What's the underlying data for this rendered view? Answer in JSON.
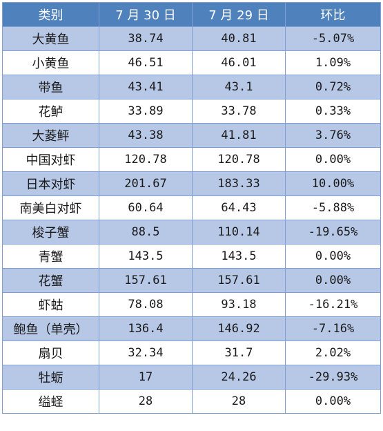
{
  "table": {
    "headers": [
      "类别",
      "7 月 30 日",
      "7 月 29 日",
      "环比"
    ],
    "rows": [
      {
        "category": "大黄鱼",
        "jul30": "38.74",
        "jul29": "40.81",
        "change": "-5.07%"
      },
      {
        "category": "小黄鱼",
        "jul30": "46.51",
        "jul29": "46.01",
        "change": "1.09%"
      },
      {
        "category": "带鱼",
        "jul30": "43.41",
        "jul29": "43.1",
        "change": "0.72%"
      },
      {
        "category": "花鲈",
        "jul30": "33.89",
        "jul29": "33.78",
        "change": "0.33%"
      },
      {
        "category": "大菱鲆",
        "jul30": "43.38",
        "jul29": "41.81",
        "change": "3.76%"
      },
      {
        "category": "中国对虾",
        "jul30": "120.78",
        "jul29": "120.78",
        "change": "0.00%"
      },
      {
        "category": "日本对虾",
        "jul30": "201.67",
        "jul29": "183.33",
        "change": "10.00%"
      },
      {
        "category": "南美白对虾",
        "jul30": "60.64",
        "jul29": "64.43",
        "change": "-5.88%"
      },
      {
        "category": "梭子蟹",
        "jul30": "88.5",
        "jul29": "110.14",
        "change": "-19.65%"
      },
      {
        "category": "青蟹",
        "jul30": "143.5",
        "jul29": "143.5",
        "change": "0.00%"
      },
      {
        "category": "花蟹",
        "jul30": "157.61",
        "jul29": "157.61",
        "change": "0.00%"
      },
      {
        "category": "虾蛄",
        "jul30": "78.08",
        "jul29": "93.18",
        "change": "-16.21%"
      },
      {
        "category": "鲍鱼（单壳）",
        "jul30": "136.4",
        "jul29": "146.92",
        "change": "-7.16%"
      },
      {
        "category": "扇贝",
        "jul30": "32.34",
        "jul29": "31.7",
        "change": "2.02%"
      },
      {
        "category": "牡蛎",
        "jul30": "17",
        "jul29": "24.26",
        "change": "-29.93%"
      },
      {
        "category": "缢蛏",
        "jul30": "28",
        "jul29": "28",
        "change": "0.00%"
      }
    ]
  },
  "colors": {
    "header_bg": "#4f81bd",
    "header_text": "#ffffff",
    "band_bg": "#b7c7e6",
    "plain_bg": "#ffffff",
    "border": "#7f9fd4"
  }
}
